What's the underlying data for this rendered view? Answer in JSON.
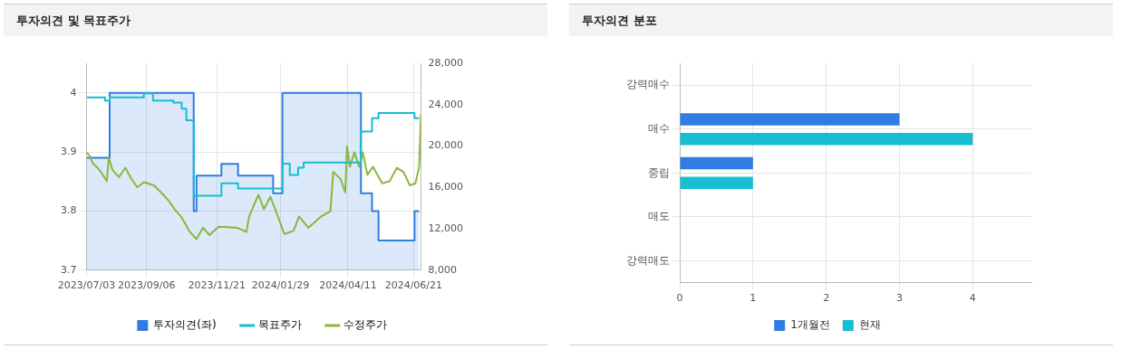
{
  "chart_data": [
    {
      "type": "step",
      "title": "투자의견 및 목표주가",
      "xlim": [
        "2023-07-03",
        "2024-06-29"
      ],
      "xticks": [
        {
          "value": "2023-07-03",
          "label": "2023/07/03"
        },
        {
          "value": "2023-09-06",
          "label": "2023/09/06"
        },
        {
          "value": "2023-11-21",
          "label": "2023/11/21"
        },
        {
          "value": "2024-01-29",
          "label": "2024/01/29"
        },
        {
          "value": "2024-04-11",
          "label": "2024/04/11"
        },
        {
          "value": "2024-06-21",
          "label": "2024/06/21"
        }
      ],
      "ylim": [
        3.7,
        4.05
      ],
      "yticks": [
        3.7,
        3.8,
        3.9,
        4
      ],
      "y2lim": [
        8000,
        28000
      ],
      "y2ticks": [
        {
          "value": 8000,
          "label": "8,000"
        },
        {
          "value": 12000,
          "label": "12,000"
        },
        {
          "value": 16000,
          "label": "16,000"
        },
        {
          "value": 20000,
          "label": "20,000"
        },
        {
          "value": 24000,
          "label": "24,000"
        },
        {
          "value": 28000,
          "label": "28,000"
        }
      ],
      "grid": true,
      "legend": "bottom",
      "series": [
        {
          "name": "투자의견(좌)",
          "type": "area",
          "axis": "y",
          "color": "#2f7de0",
          "x": [
            "2023-07-03",
            "2023-07-28",
            "2023-07-28",
            "2023-10-27",
            "2023-10-27",
            "2023-10-30",
            "2023-10-30",
            "2023-11-26",
            "2023-11-26",
            "2023-12-14",
            "2023-12-14",
            "2024-01-21",
            "2024-01-21",
            "2024-01-31",
            "2024-01-31",
            "2024-04-25",
            "2024-04-25",
            "2024-05-07",
            "2024-05-07",
            "2024-05-14",
            "2024-05-14",
            "2024-06-22",
            "2024-06-22",
            "2024-06-27"
          ],
          "values": [
            3.89,
            3.89,
            4,
            4,
            3.8,
            3.8,
            3.86,
            3.86,
            3.88,
            3.88,
            3.86,
            3.86,
            3.83,
            3.83,
            4,
            4,
            3.83,
            3.83,
            3.8,
            3.8,
            3.75,
            3.75,
            3.8,
            3.8
          ]
        },
        {
          "name": "목표주가",
          "axis": "y2",
          "color": "#17bdd0",
          "x": [
            "2023-07-03",
            "2023-07-23",
            "2023-07-23",
            "2023-07-28",
            "2023-07-28",
            "2023-09-03",
            "2023-09-03",
            "2023-09-13",
            "2023-09-13",
            "2023-10-05",
            "2023-10-05",
            "2023-10-14",
            "2023-10-14",
            "2023-10-19",
            "2023-10-19",
            "2023-10-27",
            "2023-10-27",
            "2023-11-26",
            "2023-11-26",
            "2023-12-14",
            "2023-12-14",
            "2024-01-31",
            "2024-01-31",
            "2024-02-08",
            "2024-02-08",
            "2024-02-17",
            "2024-02-17",
            "2024-02-23",
            "2024-02-23",
            "2024-04-25",
            "2024-04-25",
            "2024-05-07",
            "2024-05-07",
            "2024-05-14",
            "2024-05-14",
            "2024-06-22",
            "2024-06-22",
            "2024-06-27"
          ],
          "values": [
            24700,
            24700,
            24400,
            24400,
            24700,
            24700,
            25100,
            25100,
            24400,
            24400,
            24200,
            24200,
            23600,
            23600,
            22500,
            22500,
            15200,
            15200,
            16400,
            16400,
            15900,
            15900,
            18300,
            18300,
            17200,
            17200,
            17900,
            17900,
            18400,
            18400,
            21400,
            21400,
            22700,
            22700,
            23200,
            23200,
            22700,
            22700
          ]
        },
        {
          "name": "수정주가",
          "type": "line",
          "axis": "y2",
          "color": "#8ab83a",
          "x": [
            "2023-07-03",
            "2023-07-06",
            "2023-07-10",
            "2023-07-15",
            "2023-07-20",
            "2023-07-25",
            "2023-07-27",
            "2023-07-31",
            "2023-08-07",
            "2023-08-14",
            "2023-08-20",
            "2023-08-27",
            "2023-09-03",
            "2023-09-14",
            "2023-09-24",
            "2023-09-30",
            "2023-10-07",
            "2023-10-14",
            "2023-10-22",
            "2023-10-30",
            "2023-11-06",
            "2023-11-13",
            "2023-11-23",
            "2023-12-13",
            "2023-12-23",
            "2023-12-26",
            "2024-01-05",
            "2024-01-11",
            "2024-01-18",
            "2024-01-24",
            "2024-02-02",
            "2024-02-12",
            "2024-02-18",
            "2024-02-28",
            "2024-03-13",
            "2024-03-23",
            "2024-03-26",
            "2024-04-03",
            "2024-04-08",
            "2024-04-10",
            "2024-04-13",
            "2024-04-18",
            "2024-04-23",
            "2024-04-27",
            "2024-05-02",
            "2024-05-08",
            "2024-05-18",
            "2024-05-26",
            "2024-06-03",
            "2024-06-10",
            "2024-06-17",
            "2024-06-23",
            "2024-06-27",
            "2024-06-29"
          ],
          "values": [
            19400,
            19100,
            18300,
            17900,
            17300,
            16600,
            18900,
            17700,
            17000,
            17900,
            16900,
            16000,
            16500,
            16200,
            15300,
            14700,
            13800,
            13100,
            11800,
            11000,
            12100,
            11400,
            12200,
            12100,
            11700,
            13200,
            15300,
            13900,
            15100,
            13700,
            11500,
            11800,
            13200,
            12100,
            13200,
            13700,
            17500,
            16800,
            15500,
            20000,
            18000,
            19400,
            18000,
            19400,
            17200,
            18000,
            16400,
            16600,
            17900,
            17500,
            16200,
            16400,
            18000,
            23100
          ]
        }
      ]
    },
    {
      "type": "bar",
      "title": "투자의견 분포",
      "orientation": "horizontal",
      "categories": [
        "강력매수",
        "매수",
        "중립",
        "매도",
        "강력매도"
      ],
      "xlim": [
        0,
        4.8
      ],
      "xticks": [
        0,
        1,
        2,
        3,
        4
      ],
      "grid": true,
      "legend": "bottom",
      "series": [
        {
          "name": "1개월전",
          "color": "#2f7de0",
          "values": [
            0,
            3,
            1,
            0,
            0
          ]
        },
        {
          "name": "현재",
          "color": "#17bdd0",
          "values": [
            0,
            4,
            1,
            0,
            0
          ]
        }
      ]
    }
  ]
}
